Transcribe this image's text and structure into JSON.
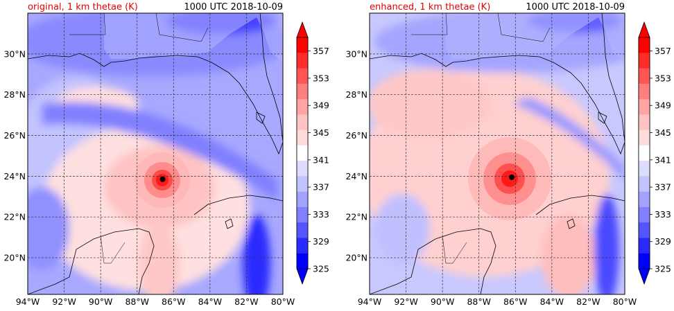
{
  "panels": [
    {
      "title": "original, 1 km thetae (K)",
      "time": "1000 UTC 2018-10-09",
      "storm_center": {
        "lon": -86.6,
        "lat": 23.85
      },
      "colorbar_ticks": [
        "325",
        "329",
        "333",
        "337",
        "341",
        "345",
        "349",
        "353",
        "357"
      ]
    },
    {
      "title": "enhanced, 1 km thetae (K)",
      "time": "1000 UTC 2018-10-09",
      "storm_center": {
        "lon": -86.2,
        "lat": 23.95
      },
      "colorbar_ticks": [
        "325",
        "329",
        "333",
        "337",
        "341",
        "345",
        "349",
        "353",
        "357"
      ]
    }
  ],
  "map": {
    "lon_range": [
      -94,
      -80
    ],
    "lat_range": [
      18.2,
      32.0
    ],
    "lon_ticks": [
      "94°W",
      "92°W",
      "90°W",
      "88°W",
      "86°W",
      "84°W",
      "82°W",
      "80°W"
    ],
    "lat_ticks": [
      "20°N",
      "22°N",
      "24°N",
      "26°N",
      "28°N",
      "30°N"
    ]
  },
  "colors": {
    "levels": [
      "#0000ff",
      "#2a2aff",
      "#5555ff",
      "#7f7fff",
      "#a3a3ff",
      "#c3c3ff",
      "#dcdcff",
      "#ffffff",
      "#ffdcdc",
      "#ffc3c3",
      "#ffa3a3",
      "#ff7f7f",
      "#ff5555",
      "#ff2a2a",
      "#ff0000"
    ],
    "title_accent": "#e00000"
  }
}
